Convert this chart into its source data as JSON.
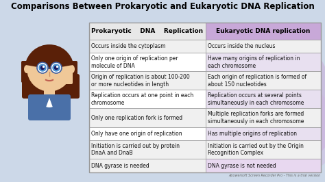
{
  "title": "Comparisons Between Prokaryotic and Eukaryotic DNA Replication",
  "col1_header": "Prokaryotic    DNA    Replication",
  "col2_header": "Eukaryotic DNA replication",
  "rows": [
    [
      "Occurs inside the cytoplasm",
      "Occurs inside the nucleus"
    ],
    [
      "Only one origin of replication per\nmolecule of DNA",
      "Have many origins of replication in\neach chromosome"
    ],
    [
      "Origin of replication is about 100-200\nor more nucleotides in length",
      "Each origin of replication is formed of\nabout 150 nucleotides"
    ],
    [
      "Replication occurs at one point in each\nchromosome",
      "Replication occurs at several points\nsimultaneously in each chromosome"
    ],
    [
      "Only one replication fork is formed",
      "Multiple replication forks are formed\nsimultaneously in each chromosome"
    ],
    [
      "Only have one origin of replication",
      "Has multiple origins of replication"
    ],
    [
      "Initiation is carried out by protein\nDnaA and DnaB",
      "Initiation is carried out by the Origin\nRecognition Complex"
    ],
    [
      "DNA gyrase is needed",
      "DNA gyrase is not needed"
    ]
  ],
  "bg_color": "#ccd8e8",
  "header_bg_col1": "#e8e8e8",
  "header_bg_col2": "#c8a8d8",
  "row_colors_col1": [
    "#f0f0f0",
    "#ffffff",
    "#f0f0f0",
    "#ffffff",
    "#f0f0f0",
    "#ffffff",
    "#f0f0f0",
    "#f0f0f0"
  ],
  "row_colors_col2": [
    "#f0f0f0",
    "#e8e0f0",
    "#f0f0f0",
    "#e8e0f0",
    "#f0f0f0",
    "#e8e0f0",
    "#f0f0f0",
    "#e8d8f0"
  ],
  "border_color": "#999999",
  "title_color": "#000000",
  "header_text_color": "#000000",
  "cell_text_color": "#111111",
  "watermark": "Apowersoft Screen Recorder Pro - This is a trial version",
  "title_fontsize": 8.5,
  "header_fontsize": 6.5,
  "cell_fontsize": 5.5,
  "watermark_fontsize": 3.5,
  "avatar_skin": "#f0c898",
  "avatar_hair": "#5a2008",
  "avatar_shirt": "#4a70a8",
  "avatar_glasses": "#4060a0"
}
